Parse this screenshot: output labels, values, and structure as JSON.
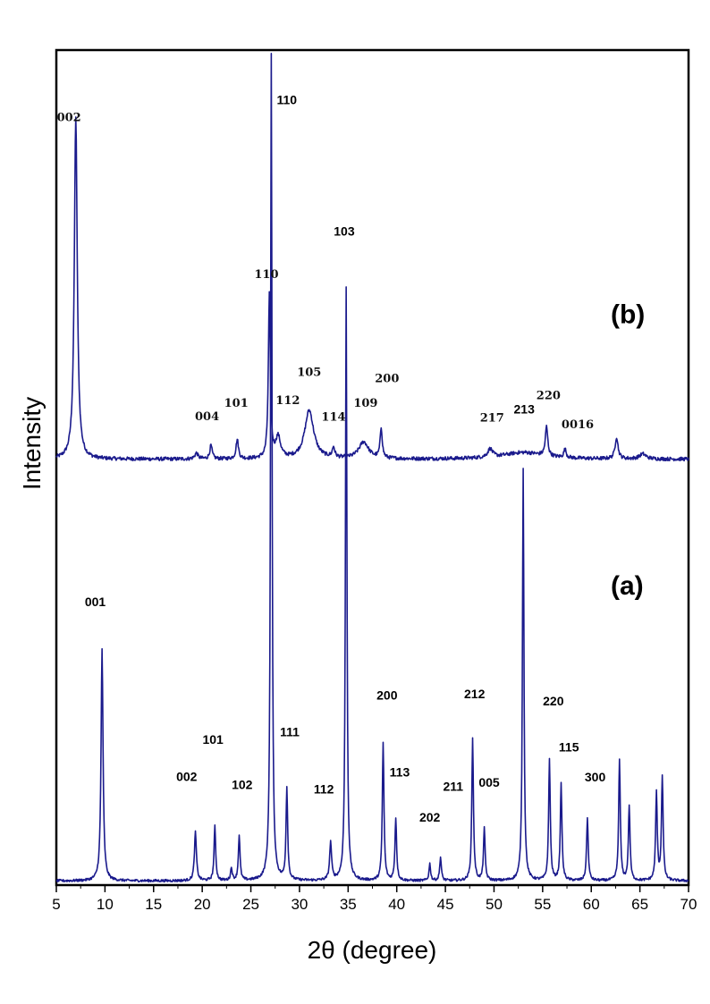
{
  "chart_data": {
    "type": "line",
    "xlabel": "2θ (degree)",
    "ylabel": "Intensity",
    "xlim": [
      5,
      70
    ],
    "xticks": [
      5,
      10,
      15,
      20,
      25,
      30,
      35,
      40,
      45,
      50,
      55,
      60,
      65,
      70
    ],
    "ylim": [
      0,
      100
    ],
    "grid": false,
    "line_color": "#1a1a8c",
    "panels": [
      {
        "label": "(b)",
        "baseline": 51,
        "noise_amp": 0.22,
        "peaks": [
          {
            "x": 7.0,
            "h": 41,
            "w": 0.18
          },
          {
            "x": 19.4,
            "h": 0.7,
            "w": 0.2
          },
          {
            "x": 20.9,
            "h": 1.6,
            "w": 0.15
          },
          {
            "x": 23.6,
            "h": 2.3,
            "w": 0.15
          },
          {
            "x": 26.9,
            "h": 19.5,
            "w": 0.12
          },
          {
            "x": 27.8,
            "h": 2.5,
            "w": 0.3
          },
          {
            "x": 31.0,
            "h": 5.8,
            "w": 0.55
          },
          {
            "x": 33.5,
            "h": 1.2,
            "w": 0.15
          },
          {
            "x": 36.6,
            "h": 2.0,
            "w": 0.6
          },
          {
            "x": 38.4,
            "h": 3.6,
            "w": 0.13
          },
          {
            "x": 49.6,
            "h": 1.0,
            "w": 0.3
          },
          {
            "x": 53.0,
            "h": 0.8,
            "w": 2.5
          },
          {
            "x": 55.4,
            "h": 3.5,
            "w": 0.15
          },
          {
            "x": 57.3,
            "h": 1.0,
            "w": 0.15
          },
          {
            "x": 62.6,
            "h": 2.6,
            "w": 0.18
          },
          {
            "x": 65.3,
            "h": 0.6,
            "w": 0.4
          }
        ],
        "peak_labels": [
          {
            "text": "002",
            "x": 6.3,
            "y": 91.5
          },
          {
            "text": "004",
            "x": 20.5,
            "y": 55.7
          },
          {
            "text": "101",
            "x": 23.5,
            "y": 57.3
          },
          {
            "text": "110",
            "x": 26.6,
            "y": 72.7
          },
          {
            "text": "112",
            "x": 28.8,
            "y": 57.6
          },
          {
            "text": "105",
            "x": 31.0,
            "y": 61.0
          },
          {
            "text": "114",
            "x": 33.5,
            "y": 55.6
          },
          {
            "text": "109",
            "x": 36.8,
            "y": 57.3
          },
          {
            "text": "200",
            "x": 39.0,
            "y": 60.2
          },
          {
            "text": "217",
            "x": 49.8,
            "y": 55.5
          },
          {
            "text": "220",
            "x": 55.6,
            "y": 58.2
          },
          {
            "text": "0016",
            "x": 58.6,
            "y": 54.7
          },
          {
            "text": "(b)",
            "x": 62.0,
            "y": 67.3
          }
        ]
      },
      {
        "label": "(a)",
        "baseline": 0.5,
        "noise_amp": 0.15,
        "peaks": [
          {
            "x": 9.7,
            "h": 27.8,
            "w": 0.12
          },
          {
            "x": 19.3,
            "h": 5.8,
            "w": 0.12
          },
          {
            "x": 21.3,
            "h": 6.5,
            "w": 0.1
          },
          {
            "x": 23.0,
            "h": 1.5,
            "w": 0.1
          },
          {
            "x": 23.8,
            "h": 5.4,
            "w": 0.1
          },
          {
            "x": 27.1,
            "h": 99.0,
            "w": 0.09
          },
          {
            "x": 28.7,
            "h": 11.0,
            "w": 0.1
          },
          {
            "x": 33.2,
            "h": 4.5,
            "w": 0.12
          },
          {
            "x": 34.8,
            "h": 71.0,
            "w": 0.09
          },
          {
            "x": 38.6,
            "h": 16.5,
            "w": 0.1
          },
          {
            "x": 39.9,
            "h": 7.5,
            "w": 0.1
          },
          {
            "x": 43.4,
            "h": 2.0,
            "w": 0.1
          },
          {
            "x": 44.5,
            "h": 2.8,
            "w": 0.1
          },
          {
            "x": 47.8,
            "h": 17.0,
            "w": 0.1
          },
          {
            "x": 49.0,
            "h": 6.2,
            "w": 0.1
          },
          {
            "x": 53.0,
            "h": 49.5,
            "w": 0.09
          },
          {
            "x": 55.7,
            "h": 14.5,
            "w": 0.1
          },
          {
            "x": 56.9,
            "h": 11.5,
            "w": 0.1
          },
          {
            "x": 59.6,
            "h": 7.5,
            "w": 0.1
          },
          {
            "x": 62.9,
            "h": 14.5,
            "w": 0.1
          },
          {
            "x": 63.9,
            "h": 9.0,
            "w": 0.1
          },
          {
            "x": 66.7,
            "h": 10.5,
            "w": 0.1
          },
          {
            "x": 67.3,
            "h": 12.5,
            "w": 0.1
          }
        ],
        "peak_labels": [
          {
            "text": "001",
            "x": 9.0,
            "y": 33.4
          },
          {
            "text": "002",
            "x": 18.4,
            "y": 12.5
          },
          {
            "text": "101",
            "x": 21.1,
            "y": 16.9
          },
          {
            "text": "102",
            "x": 24.1,
            "y": 11.5
          },
          {
            "text": "110",
            "x": 28.7,
            "y": 93.5
          },
          {
            "text": "111",
            "x": 29.0,
            "y": 17.8
          },
          {
            "text": "112",
            "x": 32.5,
            "y": 11.0
          },
          {
            "text": "103",
            "x": 34.6,
            "y": 77.8
          },
          {
            "text": "200",
            "x": 39.0,
            "y": 22.2
          },
          {
            "text": "113",
            "x": 40.3,
            "y": 13.0
          },
          {
            "text": "202",
            "x": 43.4,
            "y": 7.6
          },
          {
            "text": "211",
            "x": 45.8,
            "y": 11.3
          },
          {
            "text": "212",
            "x": 48.0,
            "y": 22.4
          },
          {
            "text": "005",
            "x": 49.5,
            "y": 11.8
          },
          {
            "text": "213",
            "x": 53.1,
            "y": 56.5
          },
          {
            "text": "220",
            "x": 56.1,
            "y": 21.5
          },
          {
            "text": "115",
            "x": 57.7,
            "y": 16.0
          },
          {
            "text": "300",
            "x": 60.4,
            "y": 12.4
          },
          {
            "text": "(a)",
            "x": 62.0,
            "y": 34.8
          }
        ]
      }
    ]
  }
}
